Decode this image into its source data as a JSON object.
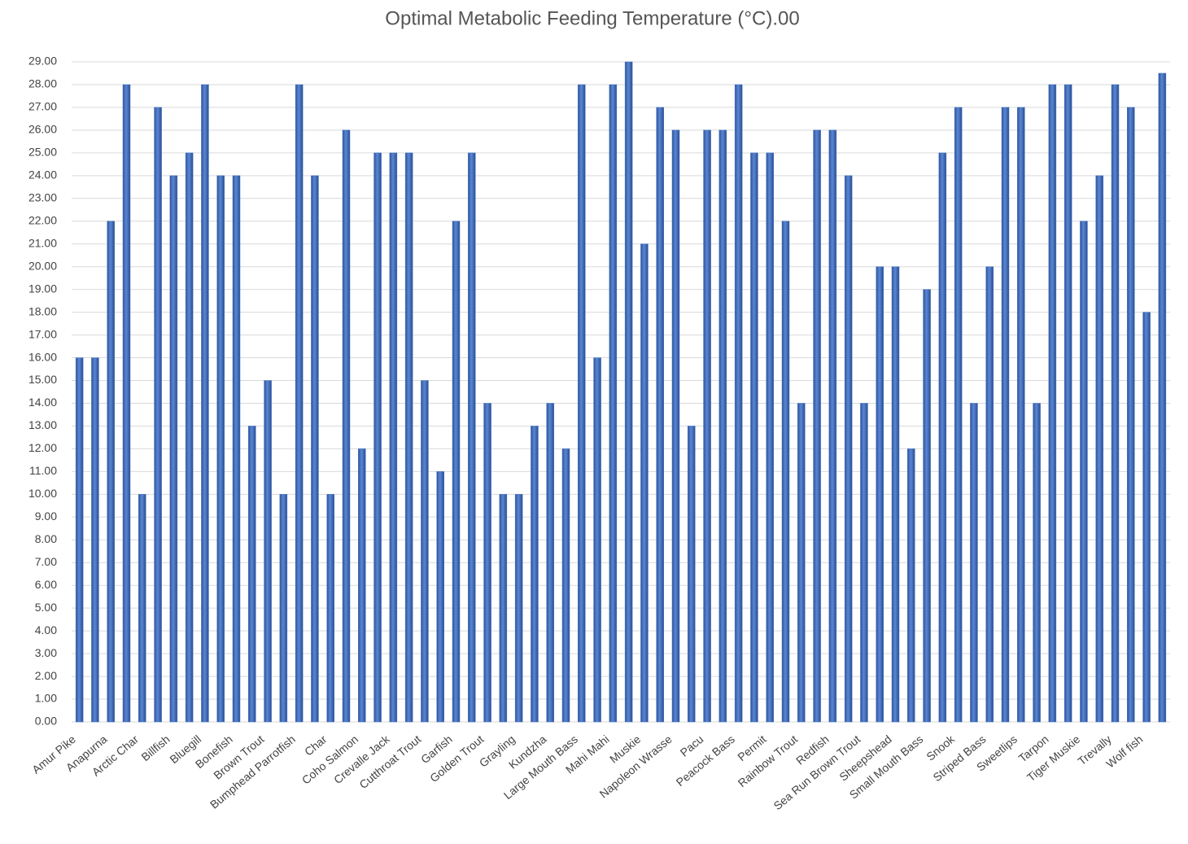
{
  "chart_data": {
    "type": "bar",
    "title": "Optimal Metabolic Feeding Temperature (°C).00",
    "categories": [
      "Amur Pike",
      null,
      "Anapurna",
      null,
      "Arctic Char",
      null,
      "Billfish",
      null,
      "Bluegill",
      null,
      "Bonefish",
      null,
      "Brown Trout",
      null,
      "Bumphead Parrotfish",
      null,
      "Char",
      null,
      "Coho Salmon",
      null,
      "Crevalle Jack",
      null,
      "Cutthroat Trout",
      null,
      "Garfish",
      null,
      "Golden Trout",
      null,
      "Grayling",
      null,
      "Kundzha",
      null,
      "Large Mouth Bass",
      null,
      "Mahi Mahi",
      null,
      "Muskie",
      null,
      "Napoleon Wrasse",
      null,
      "Pacu",
      null,
      "Peacock Bass",
      null,
      "Permit",
      null,
      "Rainbow Trout",
      null,
      "Redfish",
      null,
      "Sea Run Brown Trout",
      null,
      "Sheepshead",
      null,
      "Small Mouth Bass",
      null,
      "Snook",
      null,
      "Striped Bass",
      null,
      "Sweetlips",
      null,
      "Tarpon",
      null,
      "Tiger Muskie",
      null,
      "Trevally",
      null,
      "Wolf fish",
      null
    ],
    "values": [
      16,
      16,
      22,
      28,
      10,
      27,
      24,
      25,
      28,
      24,
      24,
      13,
      15,
      10,
      28,
      24,
      10,
      26,
      12,
      25,
      25,
      25,
      15,
      11,
      22,
      25,
      14,
      10,
      10,
      13,
      14,
      12,
      28,
      16,
      28,
      29,
      21,
      27,
      26,
      13,
      26,
      26,
      28,
      25,
      25,
      22,
      14,
      26,
      26,
      24,
      14,
      20,
      20,
      12,
      19,
      25,
      27,
      14,
      20,
      27,
      27,
      14,
      28,
      28,
      22,
      24,
      28,
      27,
      18,
      28.5
    ],
    "color": "#4472c4",
    "ylim": [
      0,
      29
    ],
    "yticks": [
      {
        "value": 0,
        "label": "0.00"
      },
      {
        "value": 1,
        "label": "1.00"
      },
      {
        "value": 2,
        "label": "2.00"
      },
      {
        "value": 3,
        "label": "3.00"
      },
      {
        "value": 4,
        "label": "4.00"
      },
      {
        "value": 5,
        "label": "5.00"
      },
      {
        "value": 6,
        "label": "6.00"
      },
      {
        "value": 7,
        "label": "7.00"
      },
      {
        "value": 8,
        "label": "8.00"
      },
      {
        "value": 9,
        "label": "9.00"
      },
      {
        "value": 10,
        "label": "10.00"
      },
      {
        "value": 11,
        "label": "11.00"
      },
      {
        "value": 12,
        "label": "12.00"
      },
      {
        "value": 13,
        "label": "13.00"
      },
      {
        "value": 14,
        "label": "14.00"
      },
      {
        "value": 15,
        "label": "15.00"
      },
      {
        "value": 16,
        "label": "16.00"
      },
      {
        "value": 17,
        "label": "17.00"
      },
      {
        "value": 18,
        "label": "18.00"
      },
      {
        "value": 19,
        "label": "19.00"
      },
      {
        "value": 20,
        "label": "20.00"
      },
      {
        "value": 21,
        "label": "21.00"
      },
      {
        "value": 22,
        "label": "22.00"
      },
      {
        "value": 23,
        "label": "23.00"
      },
      {
        "value": 24,
        "label": "24.00"
      },
      {
        "value": 25,
        "label": "25.00"
      },
      {
        "value": 26,
        "label": "26.00"
      },
      {
        "value": 27,
        "label": "27.00"
      },
      {
        "value": 28,
        "label": "28.00"
      },
      {
        "value": 29,
        "label": "29.00"
      }
    ],
    "grid": true
  }
}
